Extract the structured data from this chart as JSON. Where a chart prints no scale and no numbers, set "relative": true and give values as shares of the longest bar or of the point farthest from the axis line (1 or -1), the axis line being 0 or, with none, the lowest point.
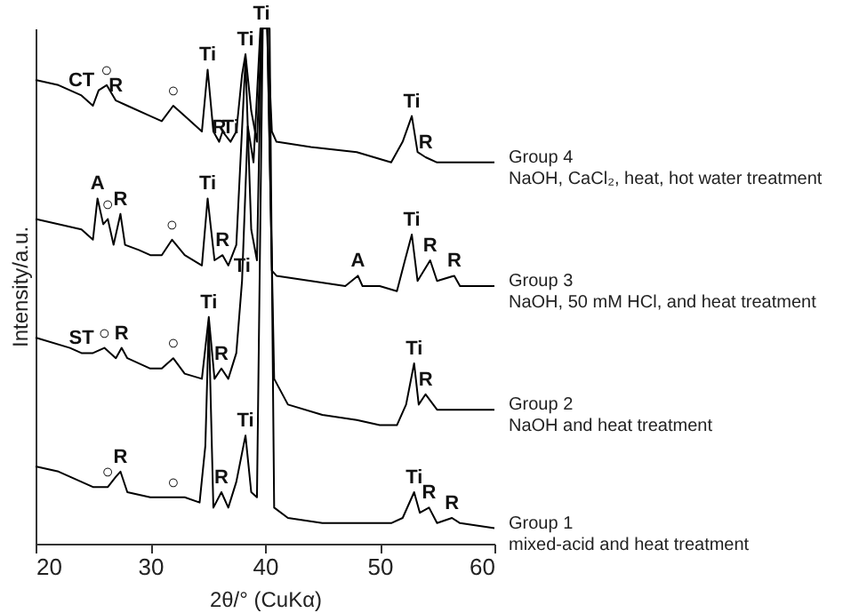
{
  "chart_data": {
    "type": "line",
    "relative": true,
    "xlabel": "2θ/°  (CuKα)",
    "ylabel": "Intensity/a.u.",
    "xlim": [
      20,
      60
    ],
    "xticks": [
      20,
      30,
      40,
      50,
      60
    ],
    "grid": false,
    "series": [
      {
        "name": "Group 4",
        "color": "#000000",
        "x": [
          20,
          22,
          24,
          25,
          25.5,
          26.2,
          27,
          28,
          30,
          31,
          32,
          33,
          34.5,
          35,
          35.5,
          36,
          36.3,
          37,
          37.5,
          38,
          38.3,
          38.8,
          39.3,
          39.7,
          40.2,
          40.6,
          41,
          44,
          48,
          51,
          52,
          52.8,
          53.3,
          54,
          55,
          60
        ],
        "values": [
          0.9,
          0.89,
          0.87,
          0.85,
          0.88,
          0.89,
          0.86,
          0.85,
          0.83,
          0.82,
          0.85,
          0.83,
          0.8,
          0.92,
          0.8,
          0.78,
          0.8,
          0.78,
          0.8,
          0.91,
          0.95,
          0.84,
          0.78,
          1,
          1,
          0.8,
          0.78,
          0.77,
          0.76,
          0.74,
          0.78,
          0.83,
          0.76,
          0.75,
          0.74,
          0.74
        ]
      },
      {
        "name": "Group 3",
        "color": "#000000",
        "x": [
          20,
          24,
          25,
          25.4,
          25.9,
          26.3,
          26.8,
          27.4,
          27.8,
          29,
          30,
          31,
          31.9,
          33,
          34.5,
          35,
          35.6,
          36.3,
          36.8,
          37.5,
          38.3,
          38.8,
          39.3,
          39.7,
          40.2,
          40.6,
          41,
          44,
          47,
          48.1,
          48.5,
          50,
          51.5,
          52.2,
          52.8,
          53.3,
          54.4,
          55,
          56.5,
          57,
          60
        ],
        "values": [
          0.63,
          0.61,
          0.59,
          0.67,
          0.62,
          0.63,
          0.58,
          0.64,
          0.58,
          0.57,
          0.56,
          0.56,
          0.59,
          0.56,
          0.54,
          0.67,
          0.55,
          0.56,
          0.54,
          0.58,
          0.94,
          0.61,
          0.55,
          1,
          1,
          0.53,
          0.52,
          0.51,
          0.5,
          0.52,
          0.5,
          0.5,
          0.49,
          0.55,
          0.6,
          0.51,
          0.55,
          0.51,
          0.52,
          0.5,
          0.5
        ]
      },
      {
        "name": "Group 2",
        "color": "#000000",
        "x": [
          20,
          23,
          24,
          25,
          26,
          27,
          27.5,
          28,
          30,
          31,
          32,
          33,
          34.5,
          35.1,
          35.6,
          36.2,
          36.8,
          37.5,
          38,
          38.5,
          39,
          39.6,
          40.2,
          40.8,
          42,
          45,
          48,
          50,
          51.5,
          52.3,
          53,
          53.4,
          54,
          55,
          60
        ],
        "values": [
          0.4,
          0.38,
          0.37,
          0.37,
          0.38,
          0.36,
          0.38,
          0.36,
          0.34,
          0.34,
          0.36,
          0.33,
          0.32,
          0.44,
          0.32,
          0.34,
          0.32,
          0.37,
          0.51,
          0.81,
          0.74,
          1,
          1,
          0.32,
          0.27,
          0.25,
          0.24,
          0.23,
          0.23,
          0.27,
          0.35,
          0.27,
          0.29,
          0.26,
          0.26
        ]
      },
      {
        "name": "Group 1",
        "color": "#000000",
        "x": [
          20,
          22,
          24,
          25,
          26.3,
          27,
          27.4,
          28,
          30,
          32,
          33,
          34.3,
          34.8,
          35.1,
          35.5,
          36.2,
          36.8,
          37.5,
          38.3,
          38.8,
          39.3,
          39.8,
          40.4,
          40.8,
          42,
          45,
          48,
          51,
          52,
          53,
          53.5,
          54.3,
          55,
          56.3,
          57,
          60
        ],
        "values": [
          0.15,
          0.14,
          0.12,
          0.11,
          0.11,
          0.13,
          0.14,
          0.1,
          0.09,
          0.09,
          0.09,
          0.08,
          0.19,
          0.43,
          0.07,
          0.1,
          0.07,
          0.12,
          0.21,
          0.1,
          0.09,
          1,
          1,
          0.07,
          0.05,
          0.04,
          0.04,
          0.04,
          0.05,
          0.1,
          0.06,
          0.07,
          0.04,
          0.05,
          0.04,
          0.03
        ]
      }
    ],
    "annotations": [
      "NaOH, CaCl₂, heat, hot water treatment",
      "NaOH, 50 mM HCl, and heat treatment",
      "NaOH and heat treatment",
      "mixed-acid and heat treatment",
      {
        "text": "CT",
        "x": 24,
        "y": 0.87
      },
      {
        "text": "○",
        "x": 26.2,
        "y": 0.89
      },
      {
        "text": "R",
        "x": 27,
        "y": 0.86
      },
      {
        "text": "○",
        "x": 32,
        "y": 0.85
      },
      {
        "text": "Ti",
        "x": 35,
        "y": 0.92
      },
      {
        "text": "R",
        "x": 36,
        "y": 0.78
      },
      {
        "text": "Ti",
        "x": 37,
        "y": 0.78
      },
      {
        "text": "Ti",
        "x": 38.3,
        "y": 0.95
      },
      {
        "text": "Ti",
        "x": 39.7,
        "y": 1
      },
      {
        "text": "Ti",
        "x": 52.8,
        "y": 0.83
      },
      {
        "text": "R",
        "x": 54,
        "y": 0.75
      },
      {
        "text": "A",
        "x": 25.4,
        "y": 0.67
      },
      {
        "text": "○",
        "x": 26.3,
        "y": 0.63
      },
      {
        "text": "R",
        "x": 27.4,
        "y": 0.64
      },
      {
        "text": "○",
        "x": 31.9,
        "y": 0.59
      },
      {
        "text": "Ti",
        "x": 35,
        "y": 0.67
      },
      {
        "text": "R",
        "x": 36.3,
        "y": 0.56
      },
      {
        "text": "Ti",
        "x": 38,
        "y": 0.51
      },
      {
        "text": "A",
        "x": 48.1,
        "y": 0.52
      },
      {
        "text": "Ti",
        "x": 52.8,
        "y": 0.6
      },
      {
        "text": "R",
        "x": 54.4,
        "y": 0.55
      },
      {
        "text": "R",
        "x": 56.5,
        "y": 0.52
      },
      {
        "text": "ST",
        "x": 24,
        "y": 0.37
      },
      {
        "text": "○",
        "x": 26,
        "y": 0.38
      },
      {
        "text": "R",
        "x": 27.5,
        "y": 0.38
      },
      {
        "text": "○",
        "x": 32,
        "y": 0.36
      },
      {
        "text": "Ti",
        "x": 35.1,
        "y": 0.44
      },
      {
        "text": "R",
        "x": 36.2,
        "y": 0.34
      },
      {
        "text": "Ti",
        "x": 53,
        "y": 0.35
      },
      {
        "text": "R",
        "x": 54,
        "y": 0.29
      },
      {
        "text": "○",
        "x": 26.3,
        "y": 0.11
      },
      {
        "text": "R",
        "x": 27.4,
        "y": 0.14
      },
      {
        "text": "○",
        "x": 32,
        "y": 0.09
      },
      {
        "text": "R",
        "x": 36.2,
        "y": 0.1
      },
      {
        "text": "Ti",
        "x": 38.3,
        "y": 0.21
      },
      {
        "text": "Ti",
        "x": 53,
        "y": 0.1
      },
      {
        "text": "R",
        "x": 54.3,
        "y": 0.07
      },
      {
        "text": "R",
        "x": 56.3,
        "y": 0.05
      }
    ]
  }
}
